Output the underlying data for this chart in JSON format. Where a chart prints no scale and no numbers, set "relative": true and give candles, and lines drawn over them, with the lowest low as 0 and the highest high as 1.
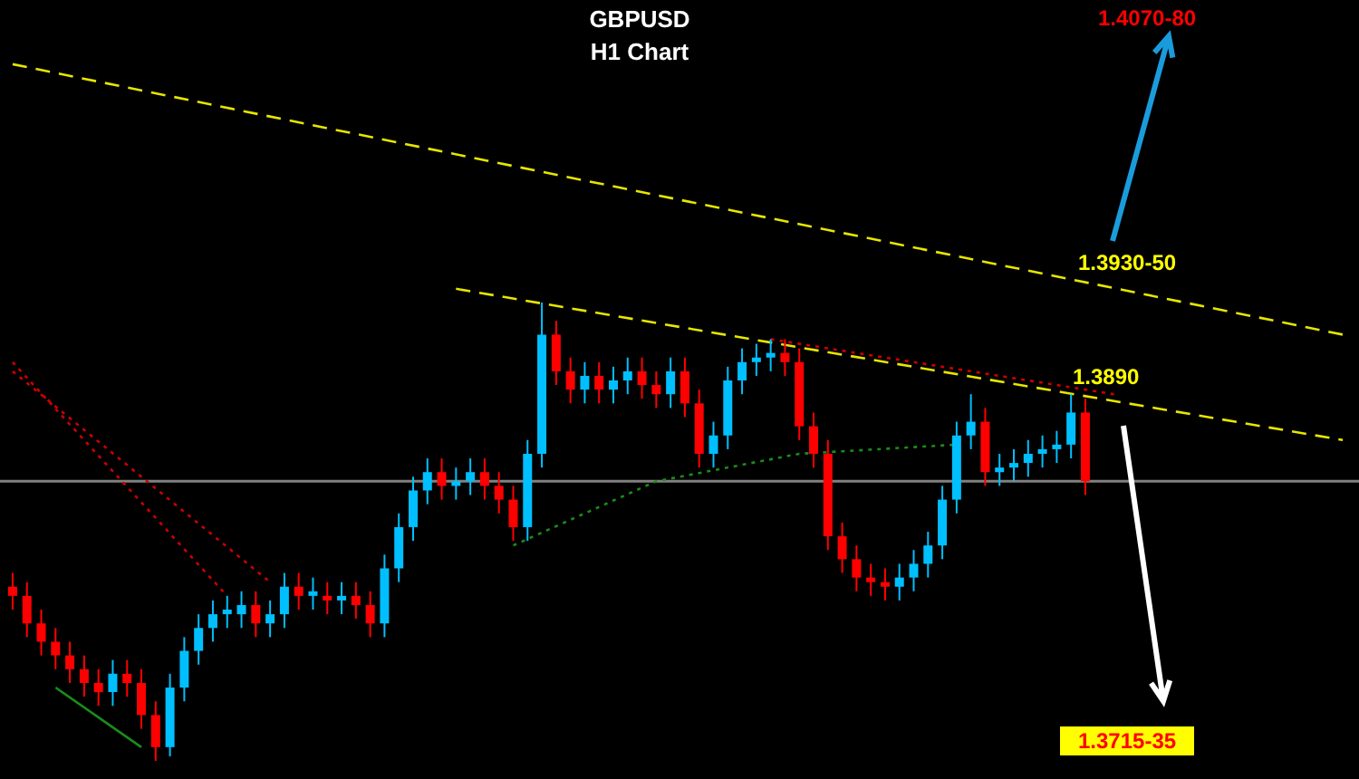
{
  "chart_data": {
    "type": "candlestick",
    "title": "GBPUSD",
    "subtitle": "H1 Chart",
    "relative": true,
    "categories": [
      null,
      null,
      null,
      null,
      null,
      null,
      null,
      null,
      null,
      null,
      null,
      null,
      null,
      null,
      null,
      null,
      null,
      null,
      null,
      null,
      null,
      null,
      null,
      null,
      null,
      null,
      null,
      null,
      null,
      null,
      null,
      null,
      null,
      null,
      null,
      null,
      null,
      null,
      null,
      null,
      null,
      null,
      null,
      null,
      null,
      null,
      null,
      null,
      null,
      null,
      null,
      null,
      null,
      null,
      null,
      null,
      null,
      null,
      null,
      null,
      null,
      null,
      null,
      null,
      null,
      null,
      null,
      null,
      null,
      null,
      null,
      null,
      null,
      null,
      null,
      null,
      null,
      null,
      null,
      null,
      null,
      null,
      null,
      null,
      null,
      null,
      null,
      null,
      null,
      null,
      null,
      null,
      null,
      null
    ],
    "colors": [
      "#ff0000",
      "#ff0000",
      "#ff0000",
      "#ff0000",
      "#ff0000",
      "#ff0000",
      "#ff0000",
      "#00bfff",
      "#ff0000",
      "#ff0000",
      "#ff0000",
      "#00bfff",
      "#00bfff",
      "#00bfff",
      "#00bfff",
      "#00bfff",
      "#00bfff",
      "#ff0000",
      "#00bfff",
      "#00bfff",
      "#ff0000",
      "#00bfff",
      "#ff0000",
      "#00bfff",
      "#ff0000",
      "#ff0000",
      "#00bfff",
      "#00bfff",
      "#00bfff",
      "#00bfff",
      "#ff0000",
      "#00bfff",
      "#00bfff",
      "#ff0000",
      "#ff0000",
      "#ff0000",
      "#00bfff",
      "#00bfff",
      "#ff0000",
      "#ff0000",
      "#00bfff",
      "#ff0000",
      "#00bfff",
      "#00bfff",
      "#ff0000",
      "#ff0000",
      "#00bfff",
      "#ff0000",
      "#ff0000",
      "#00bfff",
      "#00bfff",
      "#00bfff",
      "#00bfff",
      "#00bfff",
      "#ff0000",
      "#ff0000",
      "#ff0000",
      "#ff0000",
      "#ff0000",
      "#ff0000",
      "#ff0000",
      "#ff0000",
      "#00bfff",
      "#00bfff",
      "#00bfff",
      "#00bfff",
      "#00bfff",
      "#00bfff",
      "#ff0000",
      "#00bfff",
      "#00bfff",
      "#00bfff",
      "#00bfff",
      "#00bfff",
      "#00bfff",
      "#ff0000",
      null,
      null,
      null,
      null,
      null,
      null,
      null,
      null,
      null,
      null,
      null,
      null,
      null,
      null,
      null,
      null,
      null,
      null
    ],
    "ohlc": [
      [
        0.38,
        0.41,
        0.33,
        0.36
      ],
      [
        0.36,
        0.39,
        0.27,
        0.3
      ],
      [
        0.3,
        0.33,
        0.23,
        0.26
      ],
      [
        0.26,
        0.29,
        0.2,
        0.23
      ],
      [
        0.23,
        0.26,
        0.17,
        0.2
      ],
      [
        0.2,
        0.23,
        0.14,
        0.17
      ],
      [
        0.17,
        0.2,
        0.12,
        0.15
      ],
      [
        0.15,
        0.22,
        0.12,
        0.19
      ],
      [
        0.19,
        0.22,
        0.14,
        0.17
      ],
      [
        0.17,
        0.2,
        0.07,
        0.1
      ],
      [
        0.1,
        0.13,
        0,
        0.03
      ],
      [
        0.03,
        0.19,
        0.01,
        0.16
      ],
      [
        0.16,
        0.27,
        0.13,
        0.24
      ],
      [
        0.24,
        0.32,
        0.21,
        0.29
      ],
      [
        0.29,
        0.35,
        0.26,
        0.32
      ],
      [
        0.32,
        0.36,
        0.29,
        0.33
      ],
      [
        0.32,
        0.37,
        0.29,
        0.34
      ],
      [
        0.34,
        0.37,
        0.27,
        0.3
      ],
      [
        0.3,
        0.35,
        0.27,
        0.32
      ],
      [
        0.32,
        0.41,
        0.29,
        0.38
      ],
      [
        0.38,
        0.41,
        0.33,
        0.36
      ],
      [
        0.36,
        0.4,
        0.33,
        0.37
      ],
      [
        0.36,
        0.39,
        0.32,
        0.35
      ],
      [
        0.35,
        0.39,
        0.32,
        0.36
      ],
      [
        0.36,
        0.39,
        0.31,
        0.34
      ],
      [
        0.34,
        0.37,
        0.27,
        0.3
      ],
      [
        0.3,
        0.45,
        0.27,
        0.42
      ],
      [
        0.42,
        0.54,
        0.39,
        0.51
      ],
      [
        0.51,
        0.62,
        0.48,
        0.59
      ],
      [
        0.59,
        0.66,
        0.56,
        0.63
      ],
      [
        0.63,
        0.66,
        0.57,
        0.6
      ],
      [
        0.6,
        0.64,
        0.57,
        0.61
      ],
      [
        0.61,
        0.66,
        0.58,
        0.63
      ],
      [
        0.63,
        0.66,
        0.57,
        0.6
      ],
      [
        0.6,
        0.63,
        0.54,
        0.57
      ],
      [
        0.57,
        0.6,
        0.48,
        0.51
      ],
      [
        0.51,
        0.7,
        0.48,
        0.67
      ],
      [
        0.67,
        1,
        0.64,
        0.93
      ],
      [
        0.93,
        0.96,
        0.82,
        0.85
      ],
      [
        0.85,
        0.88,
        0.78,
        0.81
      ],
      [
        0.81,
        0.87,
        0.78,
        0.84
      ],
      [
        0.84,
        0.87,
        0.78,
        0.81
      ],
      [
        0.81,
        0.86,
        0.78,
        0.83
      ],
      [
        0.83,
        0.88,
        0.8,
        0.85
      ],
      [
        0.85,
        0.88,
        0.79,
        0.82
      ],
      [
        0.82,
        0.85,
        0.77,
        0.8
      ],
      [
        0.8,
        0.88,
        0.77,
        0.85
      ],
      [
        0.85,
        0.88,
        0.75,
        0.78
      ],
      [
        0.78,
        0.81,
        0.64,
        0.67
      ],
      [
        0.67,
        0.74,
        0.64,
        0.71
      ],
      [
        0.71,
        0.86,
        0.68,
        0.83
      ],
      [
        0.83,
        0.9,
        0.8,
        0.87
      ],
      [
        0.87,
        0.91,
        0.84,
        0.88
      ],
      [
        0.88,
        0.92,
        0.85,
        0.89
      ],
      [
        0.89,
        0.92,
        0.84,
        0.87
      ],
      [
        0.87,
        0.9,
        0.7,
        0.73
      ],
      [
        0.73,
        0.76,
        0.64,
        0.67
      ],
      [
        0.67,
        0.7,
        0.46,
        0.49
      ],
      [
        0.49,
        0.52,
        0.41,
        0.44
      ],
      [
        0.44,
        0.47,
        0.37,
        0.4
      ],
      [
        0.4,
        0.43,
        0.36,
        0.39
      ],
      [
        0.39,
        0.42,
        0.35,
        0.38
      ],
      [
        0.38,
        0.43,
        0.35,
        0.4
      ],
      [
        0.4,
        0.46,
        0.37,
        0.43
      ],
      [
        0.43,
        0.5,
        0.4,
        0.47
      ],
      [
        0.47,
        0.6,
        0.44,
        0.57
      ],
      [
        0.57,
        0.74,
        0.54,
        0.71
      ],
      [
        0.71,
        0.8,
        0.68,
        0.74
      ],
      [
        0.74,
        0.77,
        0.6,
        0.63
      ],
      [
        0.63,
        0.67,
        0.6,
        0.64
      ],
      [
        0.64,
        0.68,
        0.61,
        0.65
      ],
      [
        0.65,
        0.7,
        0.62,
        0.67
      ],
      [
        0.67,
        0.71,
        0.64,
        0.68
      ],
      [
        0.68,
        0.72,
        0.65,
        0.69
      ],
      [
        0.69,
        0.8,
        0.66,
        0.76
      ],
      [
        0.76,
        0.79,
        0.58,
        0.61
      ],
      null,
      null,
      null,
      null,
      null,
      null,
      null,
      null,
      null,
      null,
      null,
      null,
      null,
      null,
      null,
      null,
      null,
      null
    ],
    "series": [
      {
        "type": "line",
        "color": "#e6e600",
        "line_style": "dashed",
        "values": [
          1.52,
          null,
          null,
          null,
          null,
          null,
          null,
          null,
          null,
          null,
          null,
          null,
          null,
          null,
          null,
          null,
          null,
          null,
          null,
          null,
          null,
          null,
          null,
          null,
          null,
          null,
          null,
          null,
          null,
          null,
          null,
          null,
          null,
          null,
          null,
          null,
          null,
          null,
          null,
          null,
          null,
          null,
          null,
          null,
          null,
          null,
          null,
          null,
          null,
          null,
          null,
          null,
          null,
          null,
          null,
          null,
          null,
          null,
          null,
          null,
          null,
          null,
          null,
          null,
          null,
          null,
          null,
          null,
          null,
          null,
          null,
          null,
          null,
          null,
          null,
          null,
          null,
          null,
          null,
          null,
          null,
          null,
          null,
          null,
          null,
          null,
          null,
          null,
          null,
          null,
          null,
          null,
          null,
          0.93
        ]
      },
      {
        "type": "line",
        "color": "#e6e600",
        "line_style": "dashed",
        "values": [
          null,
          null,
          null,
          null,
          null,
          null,
          null,
          null,
          null,
          null,
          null,
          null,
          null,
          null,
          null,
          null,
          null,
          null,
          null,
          null,
          null,
          null,
          null,
          null,
          null,
          null,
          null,
          null,
          null,
          null,
          null,
          1.03,
          null,
          null,
          null,
          null,
          null,
          null,
          null,
          null,
          null,
          null,
          null,
          null,
          null,
          null,
          null,
          null,
          null,
          null,
          null,
          null,
          null,
          null,
          null,
          null,
          null,
          null,
          null,
          null,
          null,
          null,
          null,
          null,
          null,
          null,
          null,
          null,
          null,
          null,
          null,
          null,
          null,
          null,
          null,
          null,
          null,
          null,
          null,
          null,
          null,
          null,
          null,
          null,
          null,
          null,
          null,
          null,
          null,
          null,
          null,
          null,
          null,
          0.7
        ]
      },
      {
        "type": "line",
        "color": "#cc0000",
        "line_style": "dotted",
        "values": [
          null,
          null,
          null,
          null,
          null,
          null,
          null,
          null,
          null,
          null,
          null,
          null,
          null,
          null,
          null,
          null,
          null,
          null,
          null,
          null,
          null,
          null,
          null,
          null,
          null,
          null,
          null,
          null,
          null,
          null,
          null,
          null,
          null,
          null,
          null,
          null,
          null,
          null,
          null,
          null,
          null,
          null,
          null,
          null,
          null,
          null,
          null,
          null,
          null,
          null,
          null,
          null,
          null,
          0.92,
          null,
          null,
          null,
          null,
          null,
          null,
          null,
          null,
          null,
          null,
          null,
          null,
          null,
          null,
          null,
          null,
          null,
          null,
          null,
          null,
          null,
          null,
          null,
          0.8,
          null,
          null,
          null,
          null,
          null,
          null,
          null,
          null,
          null,
          null,
          null,
          null,
          null,
          null,
          null,
          null
        ]
      },
      {
        "type": "line",
        "color": "#1a8c1a",
        "line_style": "dotted",
        "values": [
          null,
          null,
          null,
          null,
          null,
          null,
          null,
          null,
          null,
          null,
          null,
          null,
          null,
          null,
          null,
          null,
          null,
          null,
          null,
          null,
          null,
          null,
          null,
          null,
          null,
          null,
          null,
          null,
          null,
          null,
          null,
          null,
          null,
          null,
          null,
          0.47,
          null,
          null,
          null,
          null,
          null,
          null,
          null,
          null,
          null,
          0.61,
          null,
          null,
          null,
          null,
          null,
          null,
          null,
          null,
          null,
          0.67,
          null,
          null,
          null,
          null,
          null,
          null,
          null,
          null,
          null,
          null,
          0.69,
          null,
          null,
          null,
          null,
          null,
          null,
          null,
          null,
          null,
          null,
          null,
          null,
          null,
          null,
          null,
          null,
          null,
          null,
          null,
          null,
          null,
          null,
          null,
          null,
          null,
          null,
          null
        ]
      },
      {
        "type": "line",
        "color": "#1a8c1a",
        "line_style": "solid",
        "values": [
          null,
          null,
          null,
          0.16,
          null,
          null,
          null,
          null,
          null,
          0.03,
          null,
          null,
          null,
          null,
          null,
          null,
          null,
          null,
          null,
          null,
          null,
          null,
          null,
          null,
          null,
          null,
          null,
          null,
          null,
          null,
          null,
          null,
          null,
          null,
          null,
          null,
          null,
          null,
          null,
          null,
          null,
          null,
          null,
          null,
          null,
          null,
          null,
          null,
          null,
          null,
          null,
          null,
          null,
          null,
          null,
          null,
          null,
          null,
          null,
          null,
          null,
          null,
          null,
          null,
          null,
          null,
          null,
          null,
          null,
          null,
          null,
          null,
          null,
          null,
          null,
          null,
          null,
          null,
          null,
          null,
          null,
          null,
          null,
          null,
          null,
          null,
          null,
          null,
          null,
          null,
          null,
          null,
          null,
          null
        ]
      },
      {
        "type": "line",
        "color": "#cc0000",
        "line_style": "dotted",
        "values": [
          0.87,
          null,
          null,
          null,
          null,
          null,
          null,
          null,
          null,
          null,
          null,
          null,
          null,
          null,
          null,
          0.36,
          null,
          null,
          null,
          null,
          null,
          null,
          null,
          null,
          null,
          null,
          null,
          null,
          null,
          null,
          null,
          null,
          null,
          null,
          null,
          null,
          null,
          null,
          null,
          null,
          null,
          null,
          null,
          null,
          null,
          null,
          null,
          null,
          null,
          null,
          null,
          null,
          null,
          null,
          null,
          null,
          null,
          null,
          null,
          null,
          null,
          null,
          null,
          null,
          null,
          null,
          null,
          null,
          null,
          null,
          null,
          null,
          null,
          null,
          null,
          null,
          null,
          null,
          null,
          null,
          null,
          null,
          null,
          null,
          null,
          null,
          null,
          null,
          null,
          null,
          null,
          null,
          null,
          null
        ]
      },
      {
        "type": "line",
        "color": "#cc0000",
        "line_style": "dotted",
        "values": [
          0.85,
          null,
          null,
          null,
          null,
          null,
          null,
          null,
          null,
          null,
          null,
          null,
          null,
          null,
          null,
          null,
          null,
          null,
          0.39,
          null,
          null,
          null,
          null,
          null,
          null,
          null,
          null,
          null,
          null,
          null,
          null,
          null,
          null,
          null,
          null,
          null,
          null,
          null,
          null,
          null,
          null,
          null,
          null,
          null,
          null,
          null,
          null,
          null,
          null,
          null,
          null,
          null,
          null,
          null,
          null,
          null,
          null,
          null,
          null,
          null,
          null,
          null,
          null,
          null,
          null,
          null,
          null,
          null,
          null,
          null,
          null,
          null,
          null,
          null,
          null,
          null,
          null,
          null,
          null,
          null,
          null,
          null,
          null,
          null,
          null,
          null,
          null,
          null,
          null,
          null,
          null,
          null,
          null,
          null
        ]
      }
    ],
    "ref_lines": [
      {
        "axis": "y",
        "value": 0.61,
        "color": "#808080"
      }
    ],
    "annotations": [
      "1.4070-80",
      "1.3930-50",
      "1.3890",
      "1.3715-35"
    ]
  }
}
